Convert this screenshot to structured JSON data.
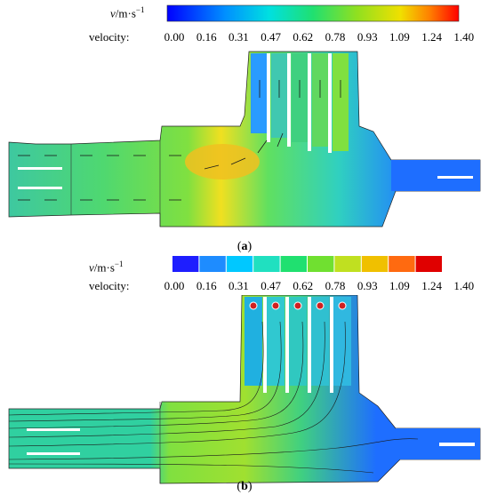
{
  "panels": [
    {
      "id": "a",
      "caption_letter": "a",
      "colorbar_type": "continuous",
      "legend_unit_symbol": "v",
      "legend_unit_rest": "/m·s",
      "legend_unit_exp": "−1",
      "legend_label": "velocity:",
      "ticks": [
        "0.00",
        "0.16",
        "0.31",
        "0.47",
        "0.62",
        "0.78",
        "0.93",
        "1.09",
        "1.24",
        "1.40"
      ],
      "visualization": "velocity vectors"
    },
    {
      "id": "b",
      "caption_letter": "b",
      "colorbar_type": "discrete",
      "legend_unit_symbol": "v",
      "legend_unit_rest": "/m·s",
      "legend_unit_exp": "−1",
      "legend_label": "velocity:",
      "ticks": [
        "0.00",
        "0.16",
        "0.31",
        "0.47",
        "0.62",
        "0.78",
        "0.93",
        "1.09",
        "1.24",
        "1.40"
      ],
      "visualization": "streamlines"
    }
  ],
  "colors": {
    "min": "#0000ff",
    "low": "#1e6eff",
    "mid_low": "#00c8ff",
    "mid": "#20e070",
    "mid_high": "#90e020",
    "high": "#f0e000",
    "max": "#ff0000"
  }
}
